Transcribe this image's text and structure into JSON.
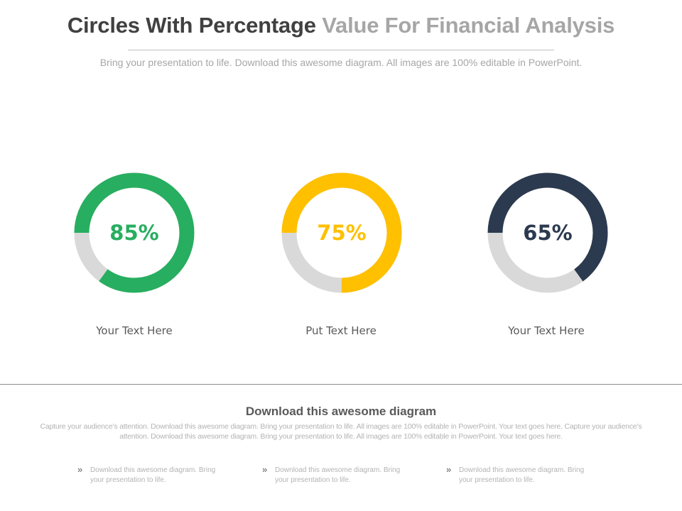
{
  "header": {
    "title_part1": "Circles With Percentage",
    "title_part2": "Value For Financial Analysis",
    "subtitle": "Bring your presentation to life. Download this awesome diagram. All images are 100% editable in PowerPoint."
  },
  "colors": {
    "track": "#d9d9d9",
    "green": "#27ae60",
    "yellow": "#ffc000",
    "navy": "#2c3a4f"
  },
  "chart_data": {
    "type": "donut",
    "items": [
      {
        "value": 85,
        "value_label": "85%",
        "label": "Your Text Here",
        "color": "#27ae60"
      },
      {
        "value": 75,
        "value_label": "75%",
        "label": "Put Text Here",
        "color": "#ffc000"
      },
      {
        "value": 65,
        "value_label": "65%",
        "label": "Your Text Here",
        "color": "#2c3a4f"
      }
    ]
  },
  "footer": {
    "title": "Download this awesome diagram",
    "body": "Capture your audience’s attention. Download this awesome diagram. Bring your presentation to life. All images are 100% editable in PowerPoint. Your text goes here. Capture your audience’s attention. Download this awesome diagram. Bring your presentation to life. All images are 100% editable in PowerPoint. Your text goes here.",
    "bullet_mark": "»",
    "bullets": [
      "Download this awesome diagram. Bring your presentation to life.",
      "Download this awesome diagram. Bring your presentation to life.",
      "Download this awesome diagram. Bring your presentation to life."
    ]
  }
}
